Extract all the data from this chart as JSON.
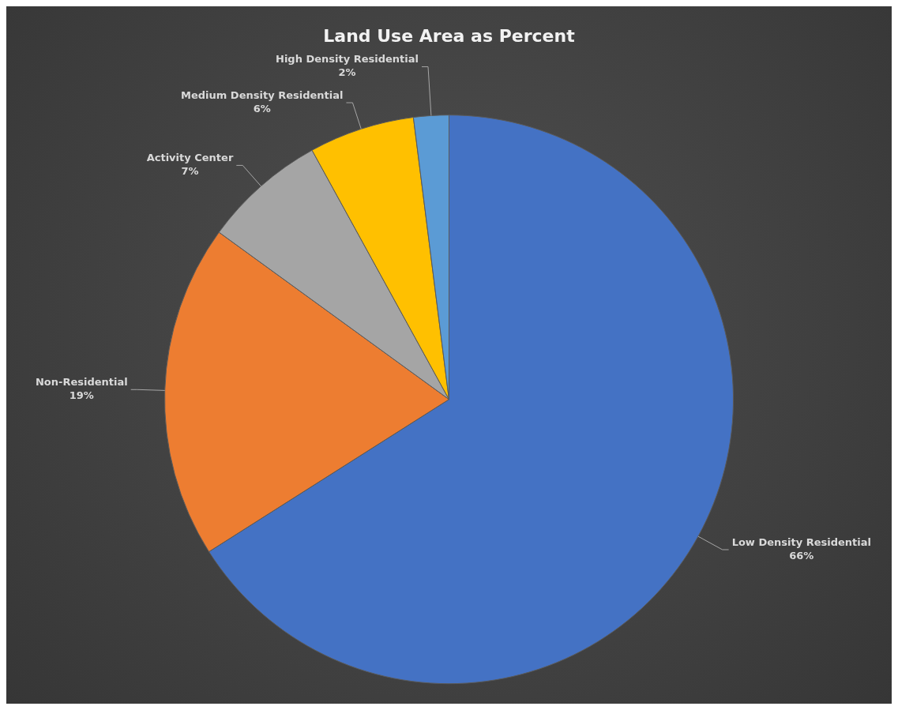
{
  "chart_data": {
    "type": "pie",
    "title": "Land Use Area as Percent",
    "categories": [
      "Low Density Residential",
      "Non-Residential",
      "Activity Center",
      "Medium Density Residential",
      "High Density Residential"
    ],
    "values": [
      66,
      19,
      7,
      6,
      2
    ],
    "value_labels": [
      "66%",
      "19%",
      "7%",
      "6%",
      "2%"
    ],
    "colors": [
      "#4472c4",
      "#ed7d31",
      "#a5a5a5",
      "#ffc000",
      "#5b9bd5"
    ],
    "legend": false
  }
}
